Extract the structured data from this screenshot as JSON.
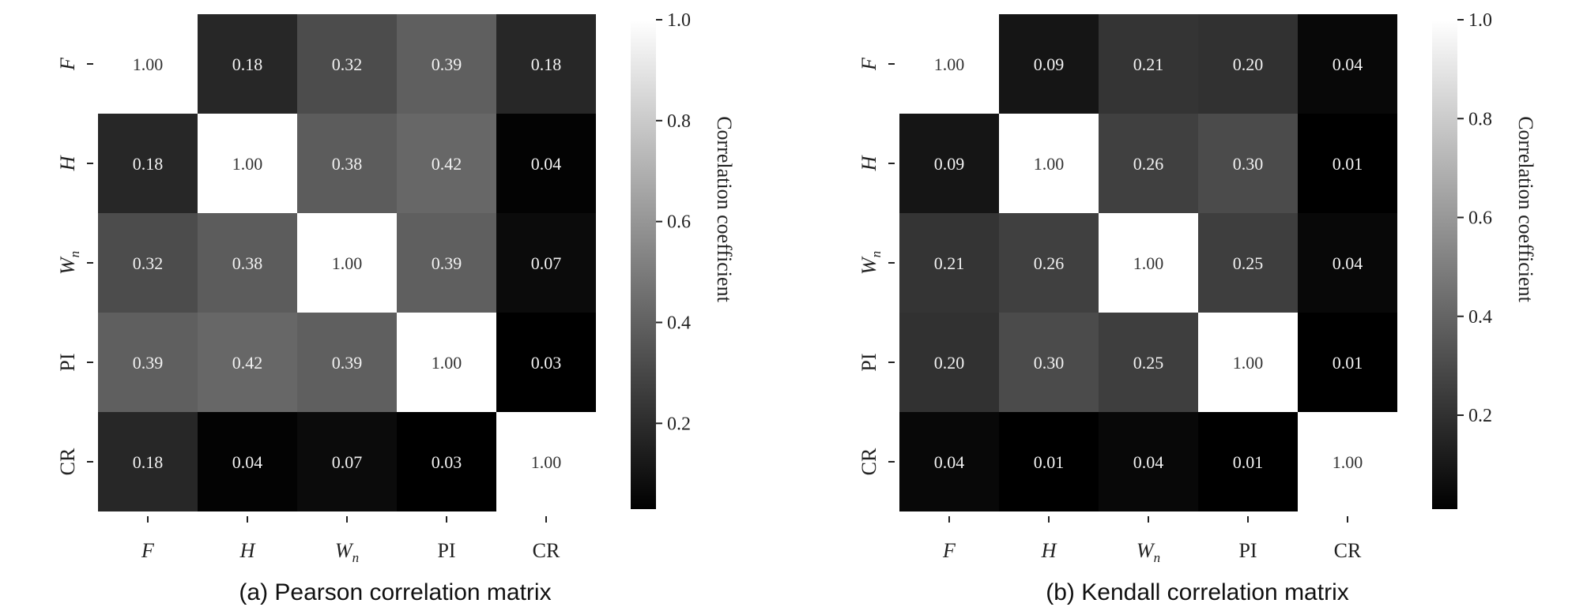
{
  "chart_data": [
    {
      "type": "heatmap",
      "xlabels": [
        "F",
        "H",
        "Wn",
        "PI",
        "CR"
      ],
      "ylabels": [
        "F",
        "H",
        "Wn",
        "PI",
        "CR"
      ],
      "values": [
        [
          1.0,
          0.18,
          0.32,
          0.39,
          0.18
        ],
        [
          0.18,
          1.0,
          0.38,
          0.42,
          0.04
        ],
        [
          0.32,
          0.38,
          1.0,
          0.39,
          0.07
        ],
        [
          0.39,
          0.42,
          0.39,
          1.0,
          0.03
        ],
        [
          0.18,
          0.04,
          0.07,
          0.03,
          1.0
        ]
      ],
      "colormap": "grayscale (black = low, white = high)",
      "colorbar_label": "Correlation coefficient",
      "colorbar_ticks": [
        0.2,
        0.4,
        0.6,
        0.8,
        1.0
      ],
      "colorbar_range": [
        0.03,
        1.0
      ],
      "caption": "(a) Pearson correlation matrix"
    },
    {
      "type": "heatmap",
      "xlabels": [
        "F",
        "H",
        "Wn",
        "PI",
        "CR"
      ],
      "ylabels": [
        "F",
        "H",
        "Wn",
        "PI",
        "CR"
      ],
      "values": [
        [
          1.0,
          0.09,
          0.21,
          0.2,
          0.04
        ],
        [
          0.09,
          1.0,
          0.26,
          0.3,
          0.01
        ],
        [
          0.21,
          0.26,
          1.0,
          0.25,
          0.04
        ],
        [
          0.2,
          0.3,
          0.25,
          1.0,
          0.01
        ],
        [
          0.04,
          0.01,
          0.04,
          0.01,
          1.0
        ]
      ],
      "colormap": "grayscale (black = low, white = high)",
      "colorbar_label": "Correlation coefficient",
      "colorbar_ticks": [
        0.2,
        0.4,
        0.6,
        0.8,
        1.0
      ],
      "colorbar_range": [
        0.01,
        1.0
      ],
      "caption": "(b) Kendall correlation matrix"
    }
  ]
}
